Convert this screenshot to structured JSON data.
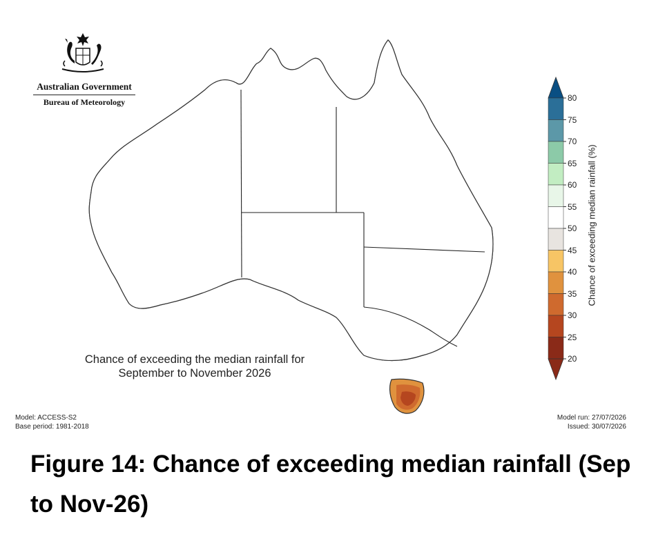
{
  "logo": {
    "line1": "Australian Government",
    "line2": "Bureau of Meteorology"
  },
  "map": {
    "title_line1": "Chance of exceeding the median rainfall for",
    "title_line2": "September to November 2026"
  },
  "footer": {
    "model": "Model: ACCESS-S2",
    "base_period": "Base period: 1981-2018",
    "model_run": "Model run: 27/07/2026",
    "issued": "Issued: 30/07/2026"
  },
  "legend": {
    "title": "Chance of exceeding median rainfall (%)",
    "ticks": [
      "80",
      "75",
      "70",
      "65",
      "60",
      "55",
      "50",
      "45",
      "40",
      "35",
      "30",
      "25",
      "20"
    ],
    "colors": {
      "c80": "#0a4f83",
      "c75": "#2b6f98",
      "c70": "#5c98a8",
      "c65": "#8ccaa8",
      "c60": "#c2edc2",
      "c55": "#e8f6e8",
      "c50": "#ffffff",
      "c45": "#e8e4e0",
      "c40": "#f7c565",
      "c35": "#e0923e",
      "c30": "#cf6a2e",
      "c25": "#b5461f",
      "c20": "#8a2a18"
    }
  },
  "caption": {
    "text": "Figure 14: Chance of exceeding median rainfall (Sep to Nov-26)"
  }
}
